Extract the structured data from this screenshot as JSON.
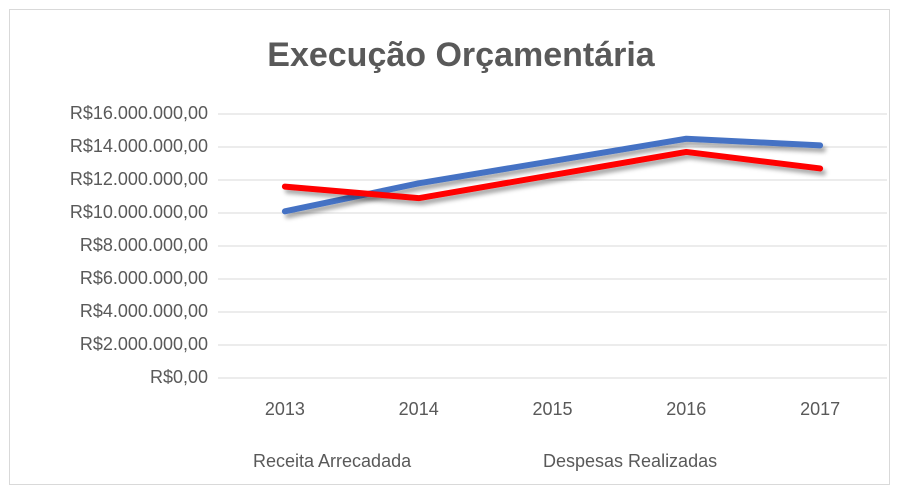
{
  "chart_data": {
    "type": "line",
    "title": "Execução Orçamentária",
    "categories": [
      "2013",
      "2014",
      "2015",
      "2016",
      "2017"
    ],
    "series": [
      {
        "name": "Receita Arrecadada",
        "color": "#4472c4",
        "values": [
          10100000,
          11800000,
          13150000,
          14500000,
          14100000
        ]
      },
      {
        "name": "Despesas Realizadas",
        "color": "#ff0000",
        "values": [
          11600000,
          10900000,
          12300000,
          13700000,
          12700000
        ]
      }
    ],
    "ylim": [
      0,
      16000000
    ],
    "yticks": [
      {
        "value": 0,
        "label": "R$0,00"
      },
      {
        "value": 2000000,
        "label": "R$2.000.000,00"
      },
      {
        "value": 4000000,
        "label": "R$4.000.000,00"
      },
      {
        "value": 6000000,
        "label": "R$6.000.000,00"
      },
      {
        "value": 8000000,
        "label": "R$8.000.000,00"
      },
      {
        "value": 10000000,
        "label": "R$10.000.000,00"
      },
      {
        "value": 12000000,
        "label": "R$12.000.000,00"
      },
      {
        "value": 14000000,
        "label": "R$14.000.000,00"
      },
      {
        "value": 16000000,
        "label": "R$16.000.000,00"
      }
    ],
    "grid": true,
    "legend": "bottom"
  }
}
